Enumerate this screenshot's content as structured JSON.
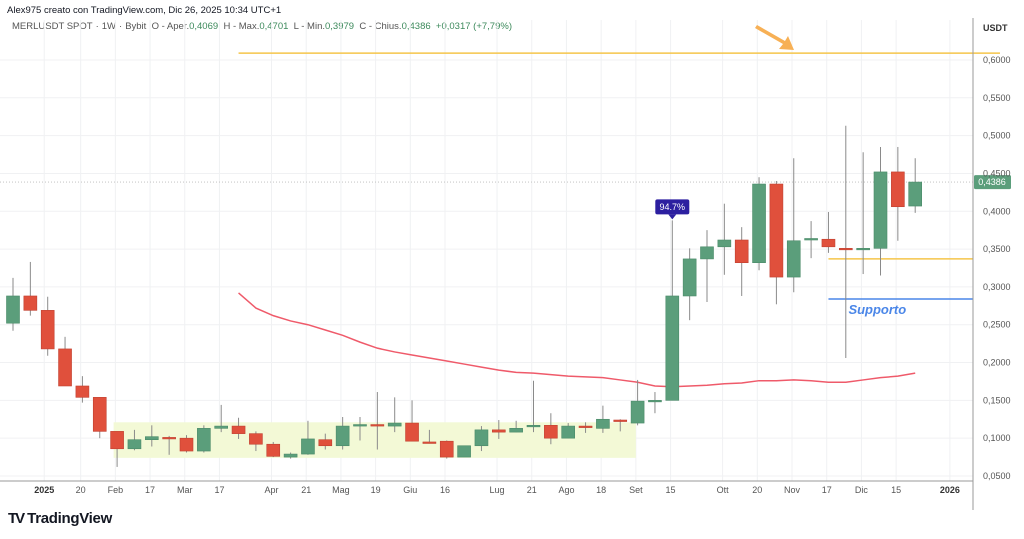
{
  "header": {
    "credit": "Alex975 creato con TradingView.com, Dic 26, 2025 10:34 UTC+1",
    "symbol": "MERLUSDT SPOT",
    "interval": "1W",
    "exchange": "Bybit",
    "open_label": "O - Aper.",
    "open": "0,4069",
    "high_label": "H - Max.",
    "high": "0,4701",
    "low_label": "L - Min.",
    "low": "0,3979",
    "close_label": "C - Chius.",
    "close": "0,4386",
    "change": "+0,0317 (+7,79%)"
  },
  "brand": {
    "logo_icon": "tradingview-logo-icon",
    "name": "TradingView"
  },
  "colors": {
    "up": "#5b9e7b",
    "down": "#e0503c",
    "ma": "#ef5a6a",
    "resistance": "#f5c54a",
    "support_blue": "#4a86e8",
    "zone": "#f3f9d6",
    "badge": "#2c1fa0",
    "arrow": "#f7b055"
  },
  "chart_data": {
    "type": "candlestick",
    "currency_label": "USDT",
    "ylim": [
      0.05,
      0.62
    ],
    "y_ticks": [
      "0,6000",
      "0,5500",
      "0,5000",
      "0,4500",
      "0,4000",
      "0,3500",
      "0,3000",
      "0,2500",
      "0,2000",
      "0,1500",
      "0,1000",
      "0,0500"
    ],
    "y_tick_values": [
      0.6,
      0.55,
      0.5,
      0.45,
      0.4,
      0.35,
      0.3,
      0.25,
      0.2,
      0.15,
      0.1,
      0.05
    ],
    "x_ticks": [
      {
        "label": "2025",
        "index": 1.8,
        "bold": true
      },
      {
        "label": "20",
        "index": 3.9
      },
      {
        "label": "Feb",
        "index": 5.9
      },
      {
        "label": "17",
        "index": 7.9
      },
      {
        "label": "Mar",
        "index": 9.9
      },
      {
        "label": "17",
        "index": 11.9
      },
      {
        "label": "Apr",
        "index": 14.9
      },
      {
        "label": "21",
        "index": 16.9
      },
      {
        "label": "Mag",
        "index": 18.9
      },
      {
        "label": "19",
        "index": 20.9
      },
      {
        "label": "Giu",
        "index": 22.9
      },
      {
        "label": "16",
        "index": 24.9
      },
      {
        "label": "Lug",
        "index": 27.9
      },
      {
        "label": "21",
        "index": 29.9
      },
      {
        "label": "Ago",
        "index": 31.9
      },
      {
        "label": "18",
        "index": 33.9
      },
      {
        "label": "Set",
        "index": 35.9
      },
      {
        "label": "15",
        "index": 37.9
      },
      {
        "label": "Ott",
        "index": 40.9
      },
      {
        "label": "20",
        "index": 42.9
      },
      {
        "label": "Nov",
        "index": 44.9
      },
      {
        "label": "17",
        "index": 46.9
      },
      {
        "label": "Dic",
        "index": 48.9
      },
      {
        "label": "15",
        "index": 50.9
      },
      {
        "label": "2026",
        "index": 54,
        "bold": true
      }
    ],
    "candles": [
      [
        0.252,
        0.312,
        0.242,
        0.288
      ],
      [
        0.288,
        0.333,
        0.262,
        0.269
      ],
      [
        0.269,
        0.287,
        0.209,
        0.218
      ],
      [
        0.218,
        0.234,
        0.169,
        0.169
      ],
      [
        0.169,
        0.182,
        0.147,
        0.154
      ],
      [
        0.154,
        0.154,
        0.1,
        0.109
      ],
      [
        0.109,
        0.109,
        0.062,
        0.086
      ],
      [
        0.086,
        0.111,
        0.084,
        0.098
      ],
      [
        0.098,
        0.117,
        0.089,
        0.102
      ],
      [
        0.101,
        0.103,
        0.078,
        0.1
      ],
      [
        0.1,
        0.104,
        0.081,
        0.083
      ],
      [
        0.083,
        0.117,
        0.081,
        0.113
      ],
      [
        0.113,
        0.144,
        0.108,
        0.116
      ],
      [
        0.116,
        0.127,
        0.099,
        0.106
      ],
      [
        0.106,
        0.109,
        0.083,
        0.092
      ],
      [
        0.092,
        0.095,
        0.075,
        0.076
      ],
      [
        0.075,
        0.081,
        0.073,
        0.079
      ],
      [
        0.079,
        0.123,
        0.078,
        0.099
      ],
      [
        0.098,
        0.106,
        0.085,
        0.09
      ],
      [
        0.09,
        0.128,
        0.085,
        0.116
      ],
      [
        0.117,
        0.128,
        0.097,
        0.118
      ],
      [
        0.118,
        0.161,
        0.085,
        0.117
      ],
      [
        0.116,
        0.154,
        0.108,
        0.12
      ],
      [
        0.12,
        0.15,
        0.096,
        0.096
      ],
      [
        0.095,
        0.111,
        0.093,
        0.094
      ],
      [
        0.096,
        0.097,
        0.073,
        0.075
      ],
      [
        0.075,
        0.09,
        0.075,
        0.09
      ],
      [
        0.09,
        0.116,
        0.083,
        0.111
      ],
      [
        0.111,
        0.124,
        0.099,
        0.108
      ],
      [
        0.108,
        0.123,
        0.108,
        0.113
      ],
      [
        0.115,
        0.176,
        0.108,
        0.117
      ],
      [
        0.117,
        0.133,
        0.092,
        0.1
      ],
      [
        0.1,
        0.12,
        0.1,
        0.116
      ],
      [
        0.116,
        0.121,
        0.107,
        0.114
      ],
      [
        0.113,
        0.143,
        0.107,
        0.125
      ],
      [
        0.124,
        0.125,
        0.109,
        0.122
      ],
      [
        0.12,
        0.177,
        0.117,
        0.149
      ],
      [
        0.15,
        0.161,
        0.133,
        0.15
      ],
      [
        0.15,
        0.388,
        0.15,
        0.288
      ],
      [
        0.288,
        0.351,
        0.256,
        0.337
      ],
      [
        0.337,
        0.375,
        0.28,
        0.353
      ],
      [
        0.353,
        0.41,
        0.316,
        0.362
      ],
      [
        0.362,
        0.379,
        0.288,
        0.332
      ],
      [
        0.332,
        0.445,
        0.322,
        0.436
      ],
      [
        0.436,
        0.44,
        0.277,
        0.313
      ],
      [
        0.313,
        0.47,
        0.293,
        0.361
      ],
      [
        0.362,
        0.387,
        0.338,
        0.364
      ],
      [
        0.363,
        0.399,
        0.345,
        0.353
      ],
      [
        0.351,
        0.513,
        0.206,
        0.35
      ],
      [
        0.35,
        0.478,
        0.317,
        0.351
      ],
      [
        0.351,
        0.485,
        0.315,
        0.452
      ],
      [
        0.452,
        0.485,
        0.361,
        0.406
      ],
      [
        0.4069,
        0.4701,
        0.3979,
        0.4386
      ]
    ],
    "candle_format": [
      "open",
      "high",
      "low",
      "close"
    ],
    "moving_average": {
      "start_index": 13,
      "values": [
        0.292,
        0.272,
        0.262,
        0.255,
        0.25,
        0.243,
        0.236,
        0.227,
        0.219,
        0.214,
        0.21,
        0.206,
        0.202,
        0.198,
        0.194,
        0.19,
        0.187,
        0.186,
        0.184,
        0.182,
        0.181,
        0.18,
        0.177,
        0.174,
        0.169,
        0.168,
        0.169,
        0.17,
        0.172,
        0.173,
        0.176,
        0.176,
        0.177,
        0.176,
        0.174,
        0.174,
        0.177,
        0.18,
        0.182,
        0.186
      ]
    },
    "last_price_label": "0,4386",
    "last_price": 0.4386,
    "annotations": {
      "resistance": {
        "price": 0.609,
        "from_index": 13,
        "to": "right-edge"
      },
      "support_yellow": {
        "price": 0.337,
        "from_index": 47
      },
      "support_blue": {
        "price": 0.284,
        "from_index": 47,
        "label": "Supporto"
      },
      "accumulation_zone": {
        "price_top": 0.121,
        "price_bottom": 0.074,
        "from_index": 5.8,
        "to_index": 35.9
      },
      "badge": {
        "text": "94.7%",
        "index": 38
      },
      "arrow": {
        "target_price": 0.609
      }
    }
  }
}
